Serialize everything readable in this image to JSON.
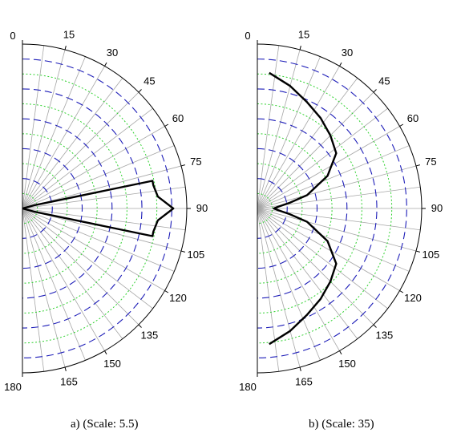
{
  "chart_data": [
    {
      "type": "polar",
      "caption": "a) (Scale: 5.5)",
      "angular_ticks": [
        "0",
        "15",
        "30",
        "45",
        "60",
        "75",
        "90",
        "105",
        "120",
        "135",
        "150",
        "165",
        "180"
      ],
      "r_max": 5.5,
      "angle_direction": "clockwise from top",
      "series": [
        {
          "theta": [
            0,
            60,
            65,
            70,
            75,
            78,
            80,
            85,
            90,
            95,
            100,
            102,
            105,
            110,
            115,
            120,
            180
          ],
          "r": [
            0,
            0,
            0,
            0,
            0.4,
            4.45,
            4.45,
            4.55,
            5.05,
            4.55,
            4.45,
            4.45,
            0.4,
            0,
            0,
            0,
            0
          ],
          "color": "#000000"
        }
      ],
      "grid": true
    },
    {
      "type": "polar",
      "caption": "b) (Scale: 35)",
      "angular_ticks": [
        "0",
        "15",
        "30",
        "45",
        "60",
        "75",
        "90",
        "105",
        "120",
        "135",
        "150",
        "165",
        "180"
      ],
      "r_max": 35,
      "angle_direction": "clockwise from top",
      "series": [
        {
          "theta": [
            5,
            15,
            25,
            35,
            45,
            55,
            65,
            75,
            80,
            85,
            90,
            95,
            100,
            105,
            115,
            125,
            135,
            145,
            155,
            165,
            175
          ],
          "r": [
            29,
            27,
            25,
            23.5,
            22,
            20.5,
            16.5,
            11,
            7,
            4.5,
            3.5,
            4.5,
            7,
            11,
            16.5,
            20.5,
            22,
            23.5,
            25,
            27,
            29
          ],
          "color": "#000000"
        }
      ],
      "grid": true
    }
  ]
}
